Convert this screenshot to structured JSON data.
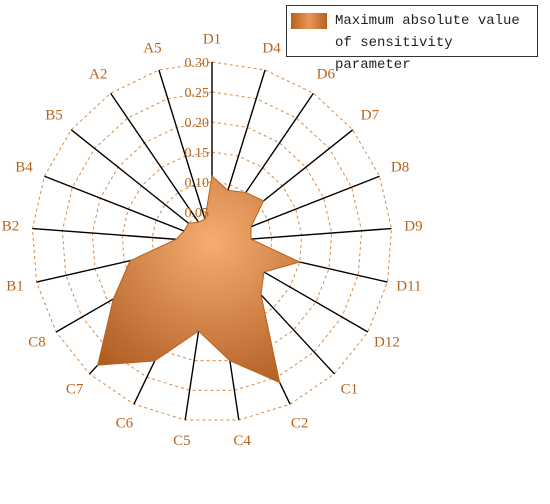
{
  "chart_data": {
    "type": "radar",
    "categories": [
      "D1",
      "D4",
      "D6",
      "D7",
      "D8",
      "D9",
      "D11",
      "D12",
      "C1",
      "C2",
      "C4",
      "C5",
      "C6",
      "C7",
      "C8",
      "B1",
      "B2",
      "B4",
      "B5",
      "A2",
      "A5"
    ],
    "series": [
      {
        "name": "Maximum absolute value of sensitivity parameter",
        "color": "#b8621b",
        "values": [
          0.11,
          0.09,
          0.1,
          0.11,
          0.07,
          0.065,
          0.15,
          0.1,
          0.12,
          0.26,
          0.2,
          0.15,
          0.22,
          0.28,
          0.19,
          0.14,
          0.06,
          0.05,
          0.05,
          0.04,
          0.04
        ]
      }
    ],
    "ylim": [
      0,
      0.3
    ],
    "yticks": [
      0.05,
      {
        "value": 0.1,
        "label": "0.10"
      },
      0.15,
      {
        "value": 0.2,
        "label": "0.20"
      },
      0.25,
      {
        "value": 0.3,
        "label": "0.30"
      }
    ],
    "grid": true,
    "legend": "top-right"
  }
}
